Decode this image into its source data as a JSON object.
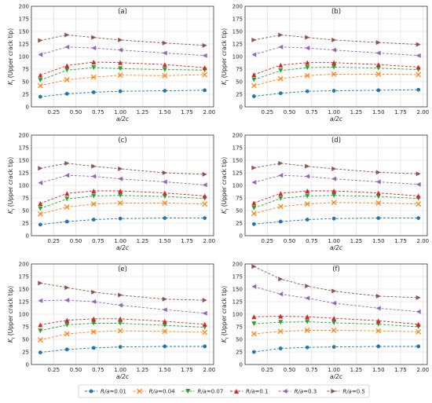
{
  "figure": {
    "legend": [
      {
        "label": "R/a=0.01",
        "color": "#1f77b4",
        "marker": "circle"
      },
      {
        "label": "R/a=0.04",
        "color": "#ff7f0e",
        "marker": "x"
      },
      {
        "label": "R/a=0.07",
        "color": "#2ca02c",
        "marker": "triangle-down"
      },
      {
        "label": "R/a=0.1",
        "color": "#d62728",
        "marker": "triangle-up"
      },
      {
        "label": "R/a=0.3",
        "color": "#9467bd",
        "marker": "triangle-left"
      },
      {
        "label": "R/a=0.5",
        "color": "#8c564b",
        "marker": "triangle-right"
      }
    ]
  },
  "chart_data": [
    {
      "type": "line",
      "title": "(a)",
      "xlabel": "a/2c",
      "ylabel": "K_I (Upper crack tip)",
      "x": [
        0.1,
        0.4,
        0.7,
        1.0,
        1.5,
        1.95
      ],
      "xlim": [
        0.0,
        2.05
      ],
      "ylim": [
        0,
        200
      ],
      "xticks": [
        "0.25",
        "0.50",
        "0.75",
        "1.00",
        "1.25",
        "1.50",
        "1.75",
        "2.00"
      ],
      "yticks": [
        "0",
        "25",
        "50",
        "75",
        "100",
        "125",
        "150",
        "175",
        "200"
      ],
      "grid": true,
      "series": [
        {
          "name": "R/a=0.01",
          "values": [
            20,
            26,
            29,
            31,
            32,
            33
          ]
        },
        {
          "name": "R/a=0.04",
          "values": [
            42,
            54,
            59,
            63,
            62,
            64
          ]
        },
        {
          "name": "R/a=0.07",
          "values": [
            53,
            73,
            78,
            76,
            74,
            73
          ]
        },
        {
          "name": "R/a=0.1",
          "values": [
            63,
            82,
            89,
            88,
            84,
            78
          ]
        },
        {
          "name": "R/a=0.3",
          "values": [
            104,
            119,
            117,
            113,
            107,
            102
          ]
        },
        {
          "name": "R/a=0.5",
          "values": [
            132,
            143,
            138,
            133,
            127,
            122
          ]
        }
      ]
    },
    {
      "type": "line",
      "title": "(b)",
      "xlabel": "a/2c",
      "ylabel": "K_I (Upper crack tip)",
      "x": [
        0.1,
        0.4,
        0.7,
        1.0,
        1.5,
        1.95
      ],
      "xlim": [
        0.0,
        2.05
      ],
      "ylim": [
        0,
        200
      ],
      "xticks": [
        "0.25",
        "0.50",
        "0.75",
        "1.00",
        "1.25",
        "1.50",
        "1.75",
        "2.00"
      ],
      "yticks": [
        "0",
        "25",
        "50",
        "75",
        "100",
        "125",
        "150",
        "175",
        "200"
      ],
      "grid": true,
      "series": [
        {
          "name": "R/a=0.01",
          "values": [
            21,
            27,
            31,
            32,
            33,
            34
          ]
        },
        {
          "name": "R/a=0.04",
          "values": [
            42,
            56,
            62,
            65,
            65,
            64
          ]
        },
        {
          "name": "R/a=0.07",
          "values": [
            54,
            72,
            78,
            79,
            77,
            74
          ]
        },
        {
          "name": "R/a=0.1",
          "values": [
            64,
            83,
            88,
            88,
            84,
            79
          ]
        },
        {
          "name": "R/a=0.3",
          "values": [
            104,
            119,
            117,
            113,
            107,
            102
          ]
        },
        {
          "name": "R/a=0.5",
          "values": [
            133,
            143,
            138,
            133,
            128,
            124
          ]
        }
      ]
    },
    {
      "type": "line",
      "title": "(c)",
      "xlabel": "a/2c",
      "ylabel": "K_I (Upper crack tip)",
      "x": [
        0.1,
        0.4,
        0.7,
        1.0,
        1.5,
        1.95
      ],
      "xlim": [
        0.0,
        2.05
      ],
      "ylim": [
        0,
        200
      ],
      "xticks": [
        "0.25",
        "0.50",
        "0.75",
        "1.00",
        "1.25",
        "1.50",
        "1.75",
        "2.00"
      ],
      "yticks": [
        "0",
        "25",
        "50",
        "75",
        "100",
        "125",
        "150",
        "175",
        "200"
      ],
      "grid": true,
      "series": [
        {
          "name": "R/a=0.01",
          "values": [
            22,
            28,
            32,
            34,
            35,
            35
          ]
        },
        {
          "name": "R/a=0.04",
          "values": [
            43,
            57,
            63,
            65,
            65,
            63
          ]
        },
        {
          "name": "R/a=0.07",
          "values": [
            54,
            73,
            79,
            80,
            78,
            74
          ]
        },
        {
          "name": "R/a=0.1",
          "values": [
            64,
            84,
            89,
            89,
            85,
            79
          ]
        },
        {
          "name": "R/a=0.3",
          "values": [
            105,
            120,
            118,
            113,
            107,
            101
          ]
        },
        {
          "name": "R/a=0.5",
          "values": [
            134,
            144,
            138,
            133,
            125,
            122
          ]
        }
      ]
    },
    {
      "type": "line",
      "title": "(d)",
      "xlabel": "a/2c",
      "ylabel": "K_I (Upper crack tip)",
      "x": [
        0.1,
        0.4,
        0.7,
        1.0,
        1.5,
        1.95
      ],
      "xlim": [
        0.0,
        2.05
      ],
      "ylim": [
        0,
        200
      ],
      "xticks": [
        "0.25",
        "0.50",
        "0.75",
        "1.00",
        "1.25",
        "1.50",
        "1.75",
        "2.00"
      ],
      "yticks": [
        "0",
        "25",
        "50",
        "75",
        "100",
        "125",
        "150",
        "175",
        "200"
      ],
      "grid": true,
      "series": [
        {
          "name": "R/a=0.01",
          "values": [
            23,
            28,
            32,
            34,
            35,
            35
          ]
        },
        {
          "name": "R/a=0.04",
          "values": [
            44,
            58,
            63,
            66,
            65,
            63
          ]
        },
        {
          "name": "R/a=0.07",
          "values": [
            55,
            74,
            79,
            80,
            78,
            74
          ]
        },
        {
          "name": "R/a=0.1",
          "values": [
            65,
            84,
            89,
            89,
            85,
            79
          ]
        },
        {
          "name": "R/a=0.3",
          "values": [
            106,
            120,
            118,
            113,
            107,
            102
          ]
        },
        {
          "name": "R/a=0.5",
          "values": [
            135,
            144,
            138,
            133,
            126,
            123
          ]
        }
      ]
    },
    {
      "type": "line",
      "title": "(e)",
      "xlabel": "a/2c",
      "ylabel": "K_I (Upper crack tip)",
      "x": [
        0.1,
        0.4,
        0.7,
        1.0,
        1.5,
        1.95
      ],
      "xlim": [
        0.0,
        2.05
      ],
      "ylim": [
        0,
        200
      ],
      "xticks": [
        "0.25",
        "0.50",
        "0.75",
        "1.00",
        "1.25",
        "1.50",
        "1.75",
        "2.00"
      ],
      "yticks": [
        "0",
        "25",
        "50",
        "75",
        "100",
        "125",
        "150",
        "175",
        "200"
      ],
      "grid": true,
      "series": [
        {
          "name": "R/a=0.01",
          "values": [
            24,
            30,
            33,
            35,
            36,
            36
          ]
        },
        {
          "name": "R/a=0.04",
          "values": [
            49,
            61,
            65,
            67,
            66,
            64
          ]
        },
        {
          "name": "R/a=0.07",
          "values": [
            67,
            79,
            82,
            82,
            78,
            74
          ]
        },
        {
          "name": "R/a=0.1",
          "values": [
            79,
            88,
            91,
            91,
            86,
            80
          ]
        },
        {
          "name": "R/a=0.3",
          "values": [
            127,
            128,
            125,
            118,
            109,
            102
          ]
        },
        {
          "name": "R/a=0.5",
          "values": [
            162,
            153,
            144,
            138,
            130,
            128
          ]
        }
      ]
    },
    {
      "type": "line",
      "title": "(f)",
      "xlabel": "a/2c",
      "ylabel": "K_I (Upper crack tip)",
      "x": [
        0.1,
        0.4,
        0.7,
        1.0,
        1.5,
        1.95
      ],
      "xlim": [
        0.0,
        2.05
      ],
      "ylim": [
        0,
        200
      ],
      "xticks": [
        "0.25",
        "0.50",
        "0.75",
        "1.00",
        "1.25",
        "1.50",
        "1.75",
        "2.00"
      ],
      "yticks": [
        "0",
        "25",
        "50",
        "75",
        "100",
        "125",
        "150",
        "175",
        "200"
      ],
      "grid": true,
      "series": [
        {
          "name": "R/a=0.01",
          "values": [
            25,
            32,
            34,
            35,
            36,
            36
          ]
        },
        {
          "name": "R/a=0.04",
          "values": [
            61,
            66,
            68,
            68,
            67,
            65
          ]
        },
        {
          "name": "R/a=0.07",
          "values": [
            81,
            84,
            85,
            83,
            80,
            75
          ]
        },
        {
          "name": "R/a=0.1",
          "values": [
            95,
            96,
            95,
            92,
            87,
            80
          ]
        },
        {
          "name": "R/a=0.3",
          "values": [
            155,
            140,
            132,
            122,
            112,
            105
          ]
        },
        {
          "name": "R/a=0.5",
          "values": [
            195,
            170,
            156,
            146,
            136,
            133
          ]
        }
      ]
    }
  ]
}
